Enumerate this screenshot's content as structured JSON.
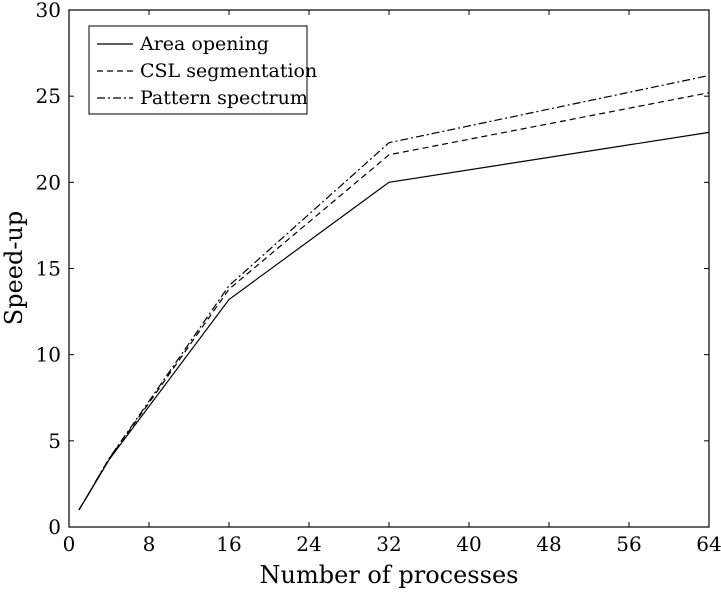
{
  "chart_data": {
    "type": "line",
    "title": "",
    "xlabel": "Number of processes",
    "ylabel": "Speed-up",
    "xlim": [
      0,
      64
    ],
    "ylim": [
      0,
      30
    ],
    "xticks": [
      0,
      8,
      16,
      24,
      32,
      40,
      48,
      56,
      64
    ],
    "yticks": [
      0,
      5,
      10,
      15,
      20,
      25,
      30
    ],
    "grid": false,
    "legend_position": "top-left",
    "x": [
      1,
      2,
      4,
      8,
      16,
      32,
      64
    ],
    "series": [
      {
        "name": "Area opening",
        "style": "solid",
        "values": [
          1,
          1.95,
          3.9,
          7.0,
          13.2,
          20.0,
          22.9
        ]
      },
      {
        "name": "CSL segmentation",
        "style": "dashed",
        "values": [
          1,
          1.97,
          3.95,
          7.2,
          13.8,
          21.6,
          25.2
        ]
      },
      {
        "name": "Pattern spectrum",
        "style": "dashdot",
        "values": [
          1,
          1.98,
          3.97,
          7.3,
          14.0,
          22.3,
          26.2
        ]
      }
    ]
  }
}
